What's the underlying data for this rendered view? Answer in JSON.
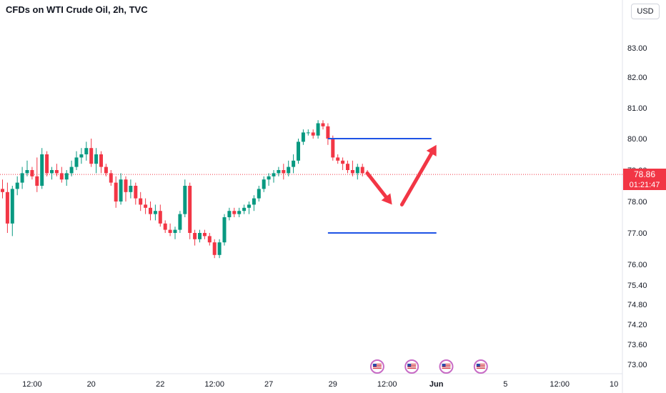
{
  "header": {
    "title": "CFDs on WTI Crude Oil, 2h, TVC",
    "currency": "USD"
  },
  "price_tag": {
    "price": "78.86",
    "countdown": "01:21:47"
  },
  "chart_data": {
    "type": "candlestick",
    "title": "CFDs on WTI Crude Oil, 2h, TVC",
    "y_axis": {
      "ticks": [
        {
          "label": "83.00",
          "v": 83.0
        },
        {
          "label": "82.00",
          "v": 82.0
        },
        {
          "label": "81.00",
          "v": 81.0
        },
        {
          "label": "80.00",
          "v": 80.0
        },
        {
          "label": "79.00",
          "v": 79.0
        },
        {
          "label": "78.00",
          "v": 78.0
        },
        {
          "label": "77.00",
          "v": 77.0
        },
        {
          "label": "76.00",
          "v": 76.0
        },
        {
          "label": "75.40",
          "v": 75.4
        },
        {
          "label": "74.80",
          "v": 74.8
        },
        {
          "label": "74.20",
          "v": 74.2
        },
        {
          "label": "73.60",
          "v": 73.6
        },
        {
          "label": "73.00",
          "v": 73.0
        }
      ]
    },
    "x_axis": {
      "ticks": [
        {
          "label": "12:00",
          "i": 6
        },
        {
          "label": "20",
          "i": 18
        },
        {
          "label": "22",
          "i": 32
        },
        {
          "label": "12:00",
          "i": 43
        },
        {
          "label": "27",
          "i": 54
        },
        {
          "label": "29",
          "i": 67
        },
        {
          "label": "12:00",
          "i": 78
        },
        {
          "label": "Jun",
          "i": 88
        },
        {
          "label": "5",
          "i": 102
        },
        {
          "label": "12:00",
          "i": 113
        },
        {
          "label": "10",
          "i": 124
        }
      ]
    },
    "current_price": 78.86,
    "candles": [
      [
        78.4,
        78.7,
        78.1,
        78.3
      ],
      [
        78.3,
        78.6,
        77.0,
        77.3
      ],
      [
        77.3,
        78.5,
        76.9,
        78.4
      ],
      [
        78.4,
        78.8,
        78.2,
        78.6
      ],
      [
        78.6,
        79.1,
        78.4,
        78.9
      ],
      [
        78.9,
        79.3,
        78.8,
        79.0
      ],
      [
        79.0,
        79.1,
        78.7,
        78.8
      ],
      [
        78.8,
        79.4,
        78.3,
        78.5
      ],
      [
        78.5,
        79.7,
        78.4,
        79.5
      ],
      [
        79.5,
        79.6,
        78.8,
        78.9
      ],
      [
        78.9,
        79.1,
        78.7,
        79.0
      ],
      [
        79.0,
        79.2,
        78.8,
        78.9
      ],
      [
        78.9,
        79.1,
        78.6,
        78.7
      ],
      [
        78.7,
        79.0,
        78.5,
        78.9
      ],
      [
        78.9,
        79.3,
        78.8,
        79.1
      ],
      [
        79.1,
        79.6,
        79.0,
        79.4
      ],
      [
        79.4,
        79.7,
        79.2,
        79.5
      ],
      [
        79.5,
        79.9,
        79.3,
        79.7
      ],
      [
        79.7,
        80.0,
        79.1,
        79.2
      ],
      [
        79.2,
        79.7,
        78.9,
        79.5
      ],
      [
        79.5,
        79.6,
        78.9,
        79.1
      ],
      [
        79.1,
        79.2,
        78.8,
        78.9
      ],
      [
        78.9,
        79.0,
        78.5,
        78.6
      ],
      [
        78.6,
        78.8,
        77.8,
        78.0
      ],
      [
        78.0,
        78.9,
        77.9,
        78.7
      ],
      [
        78.7,
        78.8,
        78.0,
        78.3
      ],
      [
        78.3,
        78.7,
        78.1,
        78.5
      ],
      [
        78.5,
        78.6,
        77.9,
        78.1
      ],
      [
        78.1,
        78.3,
        77.7,
        77.9
      ],
      [
        77.9,
        78.1,
        77.6,
        77.8
      ],
      [
        77.8,
        78.0,
        77.4,
        77.6
      ],
      [
        77.6,
        77.9,
        77.4,
        77.7
      ],
      [
        77.7,
        77.9,
        77.2,
        77.3
      ],
      [
        77.3,
        77.4,
        77.0,
        77.1
      ],
      [
        77.1,
        77.3,
        76.9,
        77.0
      ],
      [
        77.0,
        77.2,
        76.8,
        77.1
      ],
      [
        77.1,
        77.7,
        77.0,
        77.6
      ],
      [
        77.6,
        78.7,
        77.5,
        78.5
      ],
      [
        78.5,
        78.6,
        76.8,
        77.0
      ],
      [
        77.0,
        77.1,
        76.6,
        76.8
      ],
      [
        76.8,
        77.1,
        76.7,
        77.0
      ],
      [
        77.0,
        77.1,
        76.8,
        76.9
      ],
      [
        76.9,
        77.0,
        76.6,
        76.7
      ],
      [
        76.7,
        76.8,
        76.2,
        76.3
      ],
      [
        76.3,
        76.8,
        76.2,
        76.7
      ],
      [
        76.7,
        77.6,
        76.6,
        77.5
      ],
      [
        77.5,
        77.8,
        77.4,
        77.7
      ],
      [
        77.7,
        77.8,
        77.5,
        77.6
      ],
      [
        77.6,
        77.8,
        77.5,
        77.7
      ],
      [
        77.7,
        77.9,
        77.6,
        77.8
      ],
      [
        77.8,
        78.0,
        77.6,
        77.9
      ],
      [
        77.9,
        78.2,
        77.7,
        78.1
      ],
      [
        78.1,
        78.5,
        78.0,
        78.4
      ],
      [
        78.4,
        78.8,
        78.3,
        78.7
      ],
      [
        78.7,
        78.9,
        78.5,
        78.8
      ],
      [
        78.8,
        79.0,
        78.6,
        78.9
      ],
      [
        78.9,
        79.1,
        78.8,
        79.0
      ],
      [
        79.0,
        79.2,
        78.7,
        78.9
      ],
      [
        78.9,
        79.3,
        78.8,
        79.1
      ],
      [
        79.1,
        79.5,
        78.9,
        79.3
      ],
      [
        79.3,
        80.0,
        79.2,
        79.9
      ],
      [
        79.9,
        80.3,
        79.8,
        80.2
      ],
      [
        80.2,
        80.3,
        80.1,
        80.2
      ],
      [
        80.2,
        80.3,
        80.0,
        80.1
      ],
      [
        80.1,
        80.6,
        80.0,
        80.5
      ],
      [
        80.5,
        80.6,
        80.3,
        80.4
      ],
      [
        80.4,
        80.5,
        79.8,
        80.0
      ],
      [
        80.0,
        80.1,
        79.3,
        79.4
      ],
      [
        79.4,
        79.5,
        79.2,
        79.3
      ],
      [
        79.3,
        79.4,
        79.0,
        79.2
      ],
      [
        79.2,
        79.3,
        78.9,
        79.0
      ],
      [
        79.0,
        79.3,
        78.8,
        78.9
      ],
      [
        78.9,
        79.2,
        78.7,
        79.1
      ],
      [
        79.1,
        79.2,
        78.8,
        78.9
      ],
      [
        78.9,
        79.0,
        78.8,
        78.86
      ]
    ],
    "levels": [
      {
        "price": 80.0,
        "from": 66,
        "to": 87,
        "color": "#1e53e5"
      },
      {
        "price": 77.0,
        "from": 66,
        "to": 88,
        "color": "#1e53e5"
      }
    ],
    "arrows": [
      {
        "from": [
          74,
          78.9
        ],
        "to": [
          79,
          77.9
        ],
        "color": "#f23645"
      },
      {
        "from": [
          81,
          77.9
        ],
        "to": [
          88,
          79.8
        ],
        "color": "#f23645"
      }
    ],
    "event_markers": [
      {
        "i": 76,
        "label": "US"
      },
      {
        "i": 83,
        "label": "US"
      },
      {
        "i": 90,
        "label": "US"
      },
      {
        "i": 97,
        "label": "US"
      }
    ]
  }
}
